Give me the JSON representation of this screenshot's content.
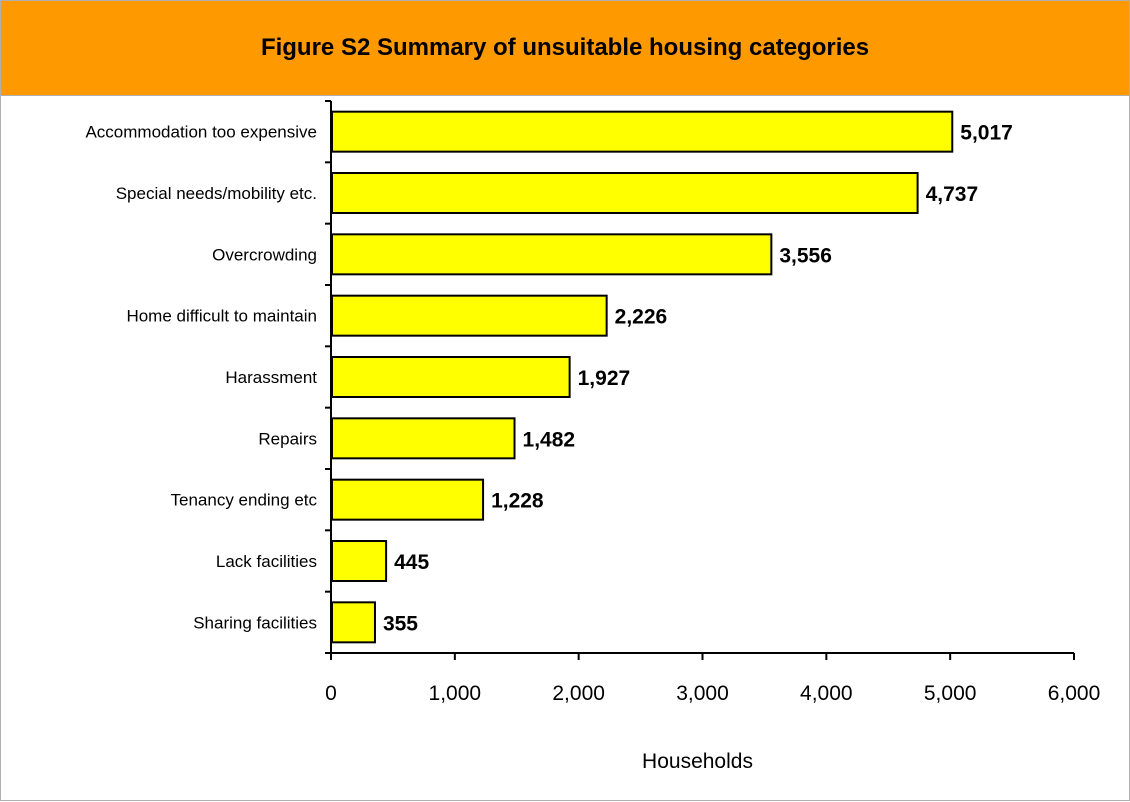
{
  "colors": {
    "title_background": "#ff9900",
    "bar_fill": "#ffff00",
    "bar_stroke": "#000000",
    "axis": "#000000",
    "frame_border": "#b0b0b0"
  },
  "chart_data": {
    "type": "bar",
    "orientation": "horizontal",
    "title": "Figure S2 Summary of unsuitable housing categories",
    "categories": [
      "Accommodation too expensive",
      "Special needs/mobility etc.",
      "Overcrowding",
      "Home difficult to maintain",
      "Harassment",
      "Repairs",
      "Tenancy ending etc",
      "Lack facilities",
      "Sharing facilities"
    ],
    "values": [
      5017,
      4737,
      3556,
      2226,
      1927,
      1482,
      1228,
      445,
      355
    ],
    "value_labels": [
      "5,017",
      "4,737",
      "3,556",
      "2,226",
      "1,927",
      "1,482",
      "1,228",
      "445",
      "355"
    ],
    "xlabel": "Households",
    "ylabel": "",
    "xlim": [
      0,
      6000
    ],
    "xticks": [
      0,
      1000,
      2000,
      3000,
      4000,
      5000,
      6000
    ],
    "xtick_labels": [
      "0",
      "1,000",
      "2,000",
      "3,000",
      "4,000",
      "5,000",
      "6,000"
    ],
    "grid": false,
    "legend": "none"
  }
}
